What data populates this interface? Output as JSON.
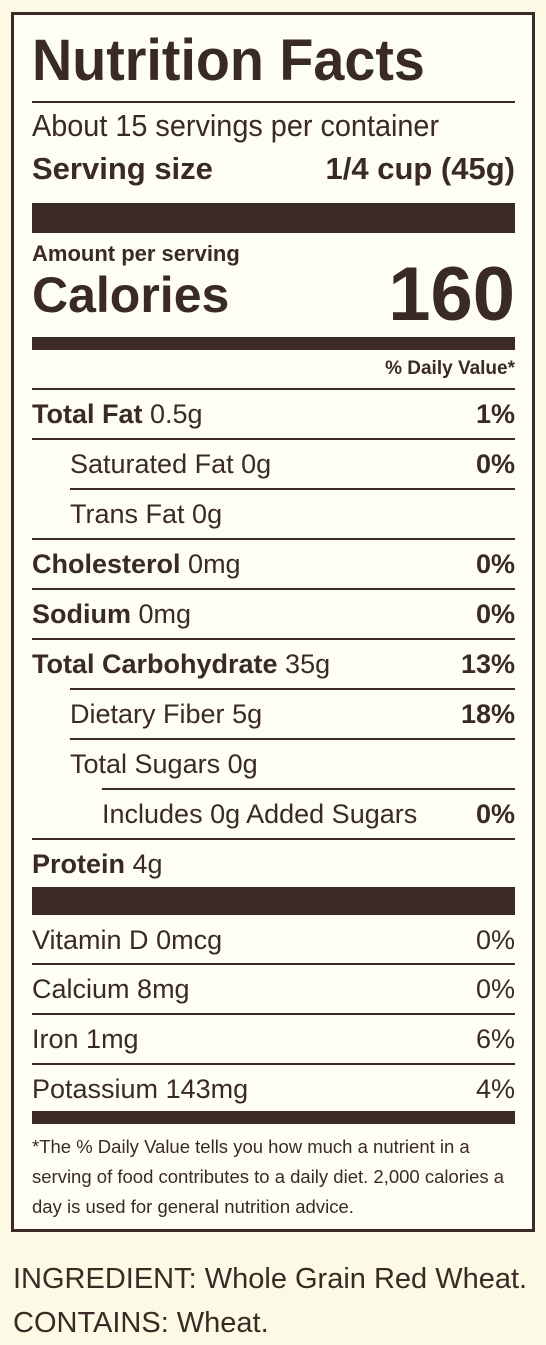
{
  "label": {
    "title": "Nutrition Facts",
    "servings_per_container": "About 15 servings per container",
    "serving_size_label": "Serving size",
    "serving_size_value": "1/4 cup (45g)",
    "amount_per_serving": "Amount per serving",
    "calories_label": "Calories",
    "calories_value": "160",
    "daily_value_header": "% Daily Value*",
    "nutrients": [
      {
        "name": "Total Fat",
        "amount": "0.5g",
        "dv": "1%"
      },
      {
        "name": "Saturated Fat",
        "amount": "0g",
        "dv": "0%"
      },
      {
        "name": "Trans Fat",
        "amount": "0g",
        "dv": ""
      },
      {
        "name": "Cholesterol",
        "amount": "0mg",
        "dv": "0%"
      },
      {
        "name": "Sodium",
        "amount": "0mg",
        "dv": "0%"
      },
      {
        "name": "Total Carbohydrate",
        "amount": "35g",
        "dv": "13%"
      },
      {
        "name": "Dietary Fiber",
        "amount": "5g",
        "dv": "18%"
      },
      {
        "name": "Total Sugars",
        "amount": "0g",
        "dv": ""
      },
      {
        "name": "Includes 0g Added Sugars",
        "amount": "",
        "dv": "0%"
      },
      {
        "name": "Protein",
        "amount": "4g",
        "dv": ""
      }
    ],
    "vitamins": [
      {
        "name": "Vitamin D",
        "amount": "0mcg",
        "dv": "0%"
      },
      {
        "name": "Calcium",
        "amount": "8mg",
        "dv": "0%"
      },
      {
        "name": "Iron",
        "amount": "1mg",
        "dv": "6%"
      },
      {
        "name": "Potassium",
        "amount": "143mg",
        "dv": "4%"
      }
    ],
    "footnote": "*The % Daily Value tells you how much a nutrient in a serving of food contributes to a daily diet. 2,000 calories a day is used for general nutrition advice."
  },
  "ingredients_text": "INGREDIENT: Whole Grain Red Wheat. CONTAINS: Wheat.",
  "colors": {
    "ink": "#3b2a26",
    "background": "#fcf9e4"
  }
}
